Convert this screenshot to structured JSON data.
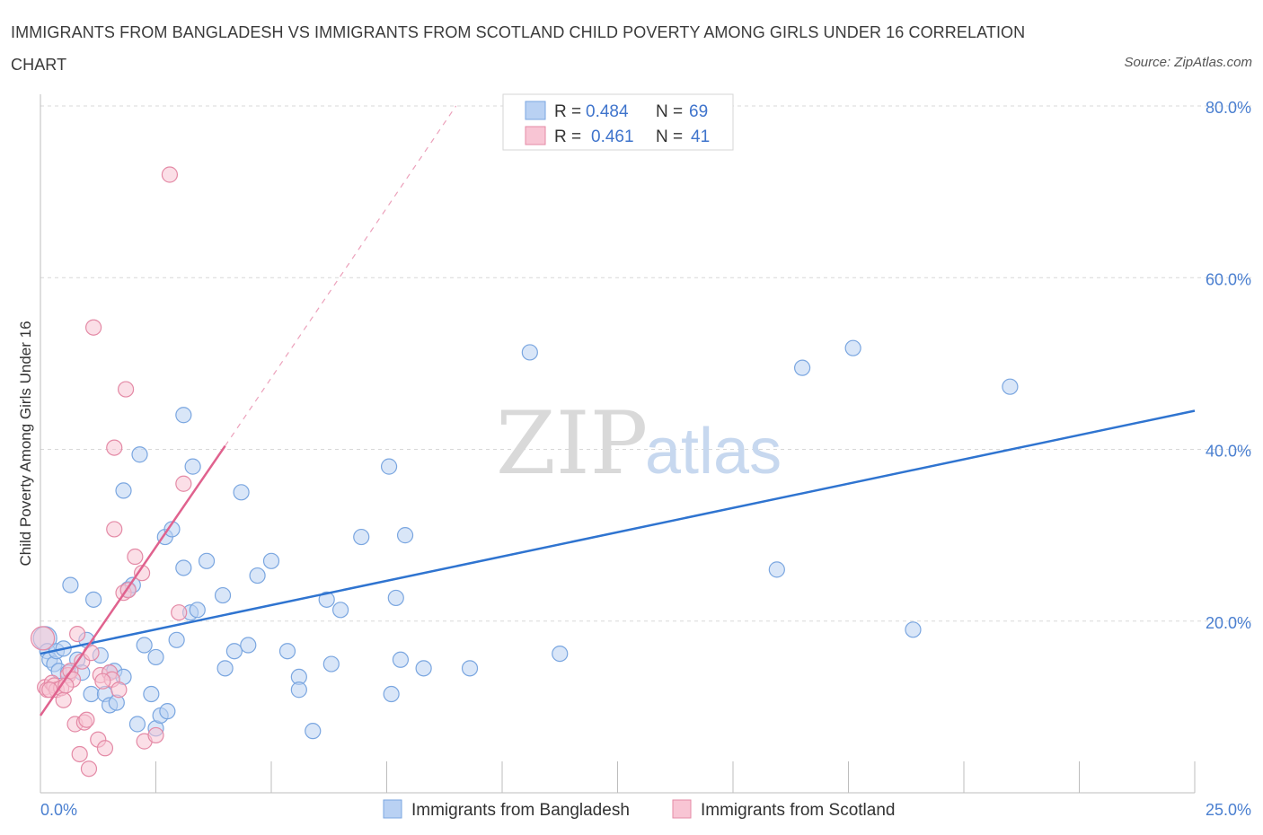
{
  "title": "IMMIGRANTS FROM BANGLADESH VS IMMIGRANTS FROM SCOTLAND CHILD POVERTY AMONG GIRLS UNDER 16 CORRELATION CHART",
  "source": "Source: ZipAtlas.com",
  "watermark": {
    "zip": "ZIP",
    "atlas": "atlas"
  },
  "colors": {
    "blue_fill": "#b9d1f3",
    "blue_stroke": "#7aa6e0",
    "blue_line": "#2f74d0",
    "pink_fill": "#f8c5d4",
    "pink_stroke": "#e48aa6",
    "pink_line": "#e0628e",
    "grid": "#d8d8d8",
    "tick_text": "#4a7fd0"
  },
  "stats": [
    {
      "r_label": "R =",
      "r_value": "0.484",
      "n_label": "N =",
      "n_value": "69",
      "color": "blue"
    },
    {
      "r_label": "R =",
      "r_value": "0.461",
      "n_label": "N =",
      "n_value": "41",
      "color": "pink"
    }
  ],
  "legend": [
    {
      "label": "Immigrants from Bangladesh",
      "color": "blue"
    },
    {
      "label": "Immigrants from Scotland",
      "color": "pink"
    }
  ],
  "chart_data": {
    "type": "scatter",
    "title": "IMMIGRANTS FROM BANGLADESH VS IMMIGRANTS FROM SCOTLAND CHILD POVERTY AMONG GIRLS UNDER 16 CORRELATION CHART",
    "xlabel": "",
    "ylabel": "Child Poverty Among Girls Under 16",
    "xlim": [
      0,
      25
    ],
    "ylim": [
      0,
      80
    ],
    "x_tick_labels": [
      {
        "value": 0,
        "label": "0.0%"
      },
      {
        "value": 25,
        "label": "25.0%"
      }
    ],
    "y_tick_labels": [
      {
        "value": 20,
        "label": "20.0%"
      },
      {
        "value": 40,
        "label": "40.0%"
      },
      {
        "value": 60,
        "label": "60.0%"
      },
      {
        "value": 80,
        "label": "80.0%"
      }
    ],
    "grid": "horizontal dashed",
    "series": [
      {
        "name": "Immigrants from Bangladesh",
        "color": "blue",
        "trend": {
          "x": [
            0,
            25
          ],
          "y": [
            16.2,
            44.5
          ],
          "style": "solid"
        },
        "points": [
          [
            0.1,
            18.0
          ],
          [
            0.15,
            16.5
          ],
          [
            0.2,
            15.5
          ],
          [
            0.3,
            15.0
          ],
          [
            0.35,
            16.5
          ],
          [
            0.4,
            14.2
          ],
          [
            0.5,
            16.8
          ],
          [
            0.6,
            14.0
          ],
          [
            0.65,
            24.2
          ],
          [
            0.8,
            15.5
          ],
          [
            0.9,
            14.0
          ],
          [
            1.0,
            17.8
          ],
          [
            1.1,
            11.5
          ],
          [
            1.15,
            22.5
          ],
          [
            1.3,
            16.0
          ],
          [
            1.4,
            11.5
          ],
          [
            1.5,
            14.0
          ],
          [
            1.5,
            10.2
          ],
          [
            1.6,
            14.2
          ],
          [
            1.65,
            10.5
          ],
          [
            1.8,
            13.5
          ],
          [
            1.8,
            35.2
          ],
          [
            1.9,
            23.7
          ],
          [
            2.0,
            24.2
          ],
          [
            2.1,
            8.0
          ],
          [
            2.15,
            39.4
          ],
          [
            2.25,
            17.2
          ],
          [
            2.4,
            11.5
          ],
          [
            2.5,
            7.5
          ],
          [
            2.5,
            15.8
          ],
          [
            2.6,
            9.0
          ],
          [
            2.7,
            29.8
          ],
          [
            2.75,
            9.5
          ],
          [
            2.85,
            30.7
          ],
          [
            2.95,
            17.8
          ],
          [
            3.1,
            26.2
          ],
          [
            3.1,
            44.0
          ],
          [
            3.25,
            21.0
          ],
          [
            3.3,
            38.0
          ],
          [
            3.4,
            21.3
          ],
          [
            3.6,
            27.0
          ],
          [
            3.95,
            23.0
          ],
          [
            4.0,
            14.5
          ],
          [
            4.2,
            16.5
          ],
          [
            4.35,
            35.0
          ],
          [
            4.5,
            17.2
          ],
          [
            4.7,
            25.3
          ],
          [
            5.0,
            27.0
          ],
          [
            5.35,
            16.5
          ],
          [
            5.6,
            13.5
          ],
          [
            5.6,
            12.0
          ],
          [
            5.9,
            7.2
          ],
          [
            6.2,
            22.5
          ],
          [
            6.3,
            15.0
          ],
          [
            6.5,
            21.3
          ],
          [
            6.95,
            29.8
          ],
          [
            7.55,
            38.0
          ],
          [
            7.6,
            11.5
          ],
          [
            7.7,
            22.7
          ],
          [
            7.8,
            15.5
          ],
          [
            7.9,
            30.0
          ],
          [
            8.3,
            14.5
          ],
          [
            9.3,
            14.5
          ],
          [
            10.6,
            51.3
          ],
          [
            11.25,
            16.2
          ],
          [
            15.95,
            26.0
          ],
          [
            16.5,
            49.5
          ],
          [
            17.6,
            51.8
          ],
          [
            18.9,
            19.0
          ],
          [
            21.0,
            47.3
          ]
        ]
      },
      {
        "name": "Immigrants from Scotland",
        "color": "pink",
        "trend": {
          "x": [
            0,
            4.0
          ],
          "y": [
            9.0,
            40.4
          ],
          "style": "solid",
          "extended": {
            "x": [
              4.0,
              9.0
            ],
            "y": [
              40.4,
              80.0
            ],
            "style": "dashed"
          }
        },
        "points": [
          [
            0.05,
            18.0
          ],
          [
            0.1,
            12.3
          ],
          [
            0.15,
            12.0
          ],
          [
            0.25,
            12.8
          ],
          [
            0.3,
            12.5
          ],
          [
            0.35,
            12.0
          ],
          [
            0.45,
            12.2
          ],
          [
            0.5,
            10.8
          ],
          [
            0.6,
            13.7
          ],
          [
            0.65,
            14.2
          ],
          [
            0.7,
            13.2
          ],
          [
            0.75,
            8.0
          ],
          [
            0.8,
            18.5
          ],
          [
            0.85,
            4.5
          ],
          [
            0.9,
            15.3
          ],
          [
            0.95,
            8.2
          ],
          [
            1.0,
            8.5
          ],
          [
            1.05,
            2.8
          ],
          [
            1.1,
            16.3
          ],
          [
            1.15,
            54.2
          ],
          [
            1.25,
            6.2
          ],
          [
            1.3,
            13.7
          ],
          [
            1.4,
            5.2
          ],
          [
            1.5,
            14.0
          ],
          [
            1.55,
            13.2
          ],
          [
            1.6,
            30.7
          ],
          [
            1.6,
            40.2
          ],
          [
            1.7,
            12.0
          ],
          [
            1.8,
            23.3
          ],
          [
            1.85,
            47.0
          ],
          [
            1.9,
            23.6
          ],
          [
            2.05,
            27.5
          ],
          [
            2.2,
            25.6
          ],
          [
            2.25,
            6.0
          ],
          [
            2.5,
            6.7
          ],
          [
            2.8,
            72.0
          ],
          [
            3.0,
            21.0
          ],
          [
            3.1,
            36.0
          ],
          [
            0.2,
            12.0
          ],
          [
            0.55,
            12.5
          ],
          [
            1.35,
            13.0
          ]
        ]
      }
    ]
  }
}
